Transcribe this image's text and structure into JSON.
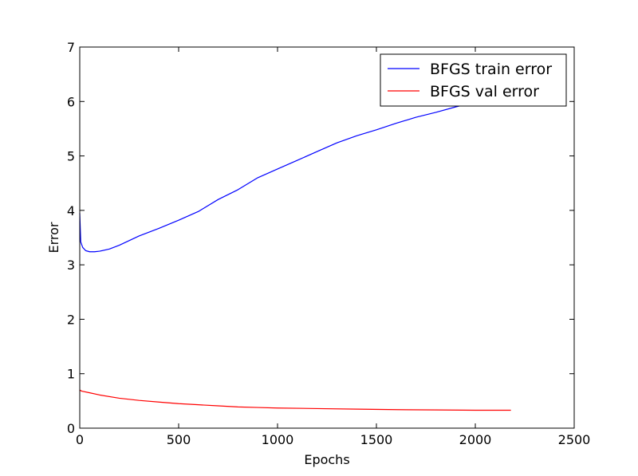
{
  "chart_data": {
    "type": "line",
    "title": "",
    "xlabel": "Epochs",
    "ylabel": "Error",
    "xlim": [
      0,
      2500
    ],
    "ylim": [
      0,
      7
    ],
    "xticks": [
      "0",
      "500",
      "1000",
      "1500",
      "2000",
      "2500"
    ],
    "yticks": [
      "0",
      "1",
      "2",
      "3",
      "4",
      "5",
      "6",
      "7"
    ],
    "grid": false,
    "legend_position": "top-right",
    "series": [
      {
        "name": "BFGS train error",
        "color": "#0000ff",
        "x": [
          0,
          5,
          15,
          30,
          50,
          75,
          100,
          150,
          200,
          300,
          400,
          500,
          600,
          700,
          800,
          900,
          1000,
          1100,
          1200,
          1300,
          1400,
          1500,
          1600,
          1700,
          1800,
          1900,
          2000,
          2100,
          2180
        ],
        "y": [
          3.95,
          3.42,
          3.32,
          3.26,
          3.24,
          3.24,
          3.25,
          3.29,
          3.36,
          3.53,
          3.67,
          3.82,
          3.98,
          4.2,
          4.38,
          4.6,
          4.76,
          4.92,
          5.08,
          5.24,
          5.37,
          5.48,
          5.6,
          5.71,
          5.8,
          5.9,
          5.99,
          6.08,
          6.15
        ]
      },
      {
        "name": "BFGS val error",
        "color": "#ff0000",
        "x": [
          0,
          10,
          50,
          100,
          200,
          300,
          400,
          500,
          600,
          700,
          800,
          900,
          1000,
          1200,
          1400,
          1600,
          1800,
          2000,
          2180
        ],
        "y": [
          0.7,
          0.68,
          0.65,
          0.61,
          0.55,
          0.51,
          0.48,
          0.45,
          0.43,
          0.41,
          0.39,
          0.38,
          0.37,
          0.36,
          0.35,
          0.34,
          0.335,
          0.33,
          0.33
        ]
      }
    ]
  }
}
